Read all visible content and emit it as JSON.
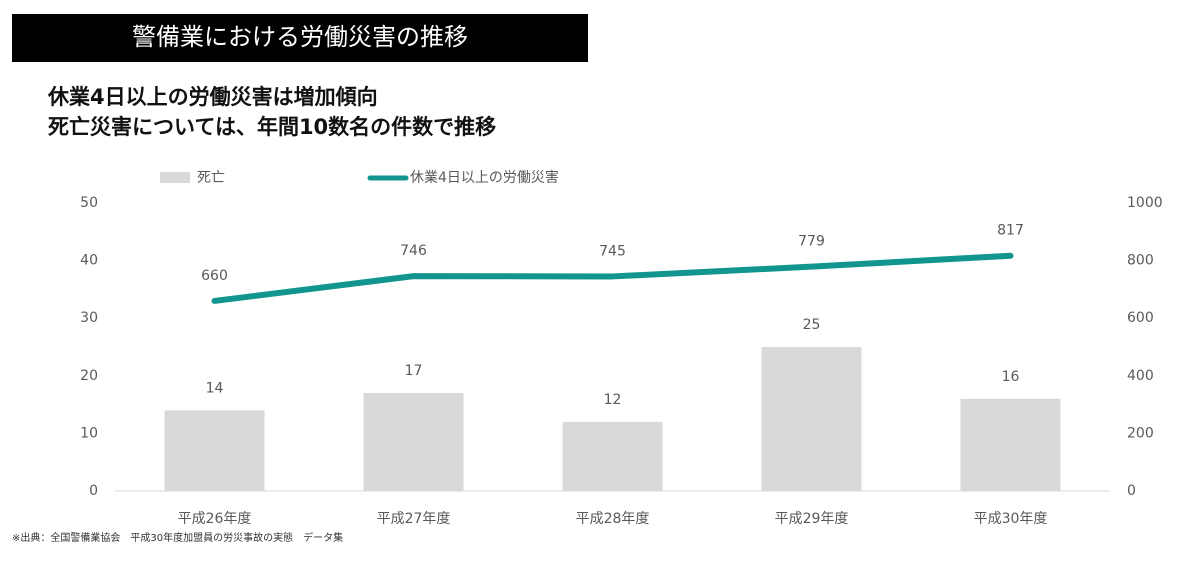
{
  "chart_data": {
    "type": "combo",
    "title": "警備業における労働災害の推移",
    "subtitle": [
      "休業4日以上の労働災害は増加傾向",
      "死亡災害については、年間10数名の件数で推移"
    ],
    "note": "※出典：全国警備業協会　平成30年度加盟員の労災事故の実態　データ集",
    "categories": [
      "平成26年度",
      "平成27年度",
      "平成28年度",
      "平成29年度",
      "平成30年度"
    ],
    "series": [
      {
        "name": "死亡",
        "type": "bar",
        "color": "#d9d9d9",
        "values": [
          14,
          17,
          12,
          25,
          16
        ]
      },
      {
        "name": "休業4日以上の労働災害",
        "type": "line",
        "axis": "y2",
        "color": "#13958f",
        "values": [
          660,
          746,
          745,
          779,
          817
        ]
      }
    ],
    "ylim": [
      0,
      50
    ],
    "yticks": [
      0,
      10,
      20,
      30,
      40,
      50
    ],
    "y2lim": [
      0,
      1000
    ],
    "y2ticks": [
      0,
      200,
      400,
      600,
      800,
      1000
    ],
    "grid": false,
    "legend": "top"
  }
}
